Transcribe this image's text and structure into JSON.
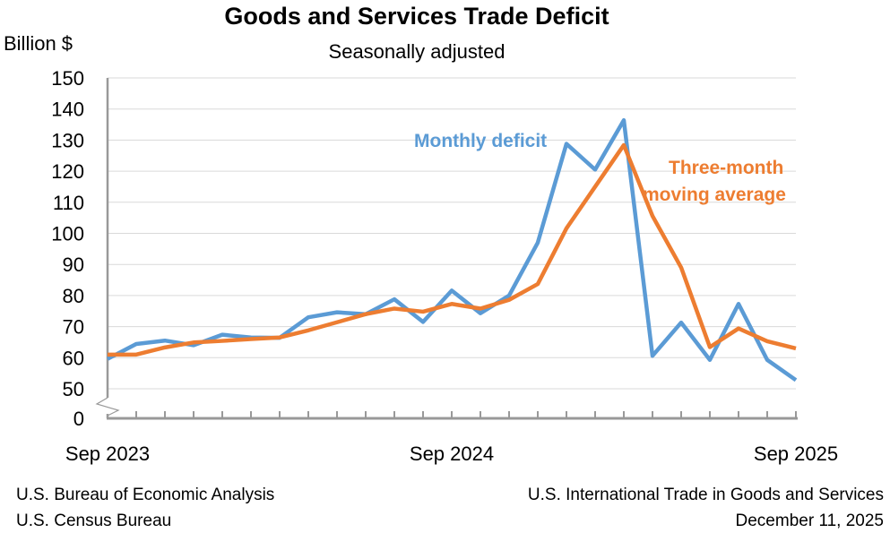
{
  "chart_data": {
    "type": "line",
    "title": "Goods and Services Trade Deficit",
    "subtitle": "Seasonally adjusted",
    "ylabel": "Billion $",
    "ylim": [
      50,
      150
    ],
    "y_axis_break": true,
    "y_ticks": [
      "150",
      "140",
      "130",
      "120",
      "110",
      "100",
      "90",
      "80",
      "70",
      "60",
      "50",
      "0"
    ],
    "x_tick_labels": [
      "Sep 2023",
      "Sep 2024",
      "Sep 2025"
    ],
    "x": [
      "Sep 2023",
      "Oct 2023",
      "Nov 2023",
      "Dec 2023",
      "Jan 2024",
      "Feb 2024",
      "Mar 2024",
      "Apr 2024",
      "May 2024",
      "Jun 2024",
      "Jul 2024",
      "Aug 2024",
      "Sep 2024",
      "Oct 2024",
      "Nov 2024",
      "Dec 2024",
      "Jan 2025",
      "Feb 2025",
      "Mar 2025",
      "Apr 2025",
      "May 2025",
      "Jun 2025",
      "Jul 2025",
      "Aug 2025",
      "Sep 2025"
    ],
    "grid": true,
    "series": [
      {
        "name": "Monthly deficit",
        "color": "#5b9bd5",
        "values": [
          59.6,
          64.4,
          65.5,
          64.0,
          67.4,
          66.5,
          66.4,
          73.0,
          74.6,
          74.0,
          78.8,
          71.5,
          81.6,
          74.3,
          80.0,
          97.0,
          128.8,
          120.5,
          136.4,
          60.6,
          71.3,
          59.3,
          77.3,
          59.3,
          52.8
        ]
      },
      {
        "name": "Three-month moving average",
        "color": "#ed7d31",
        "values": [
          61.0,
          61.0,
          63.3,
          64.9,
          65.4,
          66.0,
          66.5,
          68.8,
          71.4,
          74.0,
          75.8,
          74.8,
          77.3,
          75.8,
          78.6,
          83.7,
          101.6,
          115.0,
          128.4,
          105.6,
          89.0,
          63.4,
          69.4,
          65.3,
          63.0
        ]
      }
    ],
    "annotations": {
      "monthly": "Monthly deficit",
      "avg_line1": "Three-month",
      "avg_line2": "moving average"
    }
  },
  "footer": {
    "left1": "U.S. Bureau of Economic Analysis",
    "left2": "U.S. Census Bureau",
    "right1": "U.S. International Trade in Goods and Services",
    "right2": "December 11, 2025"
  }
}
